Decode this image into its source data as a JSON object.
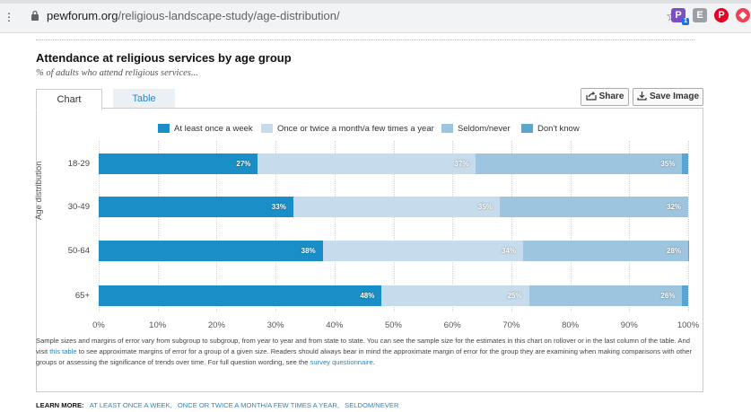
{
  "browser": {
    "menu_glyph": "⋮",
    "url_domain": "pewforum.org",
    "url_path": "/religious-landscape-study/age-distribution/",
    "star_glyph": "☆",
    "extensions": [
      {
        "name": "p-extension-icon",
        "text": "P",
        "color": "#7b4fbf"
      },
      {
        "name": "grey-extension-icon",
        "text": "E",
        "color": "#9aa0a6"
      },
      {
        "name": "pinterest-icon",
        "text": "P",
        "color": "#e60023"
      },
      {
        "name": "pocket-icon",
        "text": "◆",
        "color": "#ef4056"
      }
    ],
    "badge_text": "1"
  },
  "page": {
    "title": "Attendance at religious services by age group",
    "subtitle": "% of adults who attend religious services...",
    "tabs": {
      "chart": "Chart",
      "table": "Table"
    },
    "share_label": "Share",
    "save_label": "Save Image",
    "y_axis_label": "Age distribution",
    "note": {
      "part1": "Sample sizes and margins of error vary from subgroup to subgroup, from year to year and from state to state. You can see the sample size for the estimates in this chart on rollover or in the last column of the table. And visit ",
      "link1": "this table",
      "part2": " to see approximate margins of error for a group of a given size. Readers should always bear in mind the approximate margin of error for the group they are examining when making comparisons with other groups or assessing the significance of trends over time. For full question wording, see the ",
      "link2": "survey questionnaire",
      "part3": "."
    },
    "learn_more": {
      "label": "LEARN MORE:",
      "links": [
        "AT LEAST ONCE A WEEK,",
        "ONCE OR TWICE A MONTH/A FEW TIMES A YEAR,",
        "SELDOM/NEVER"
      ]
    }
  },
  "chart_data": {
    "type": "bar",
    "orientation": "horizontal",
    "stacked": true,
    "categories": [
      "18-29",
      "30-49",
      "50-64",
      "65+"
    ],
    "series": [
      {
        "name": "At least once a week",
        "color": "#1a8fc7",
        "values": [
          27,
          33,
          38,
          48
        ],
        "labels": [
          "27%",
          "33%",
          "38%",
          "48%"
        ]
      },
      {
        "name": "Once or twice a month/a few times a year",
        "color": "#c6dcec",
        "values": [
          37,
          35,
          34,
          25
        ],
        "labels": [
          "37%",
          "35%",
          "34%",
          "25%"
        ]
      },
      {
        "name": "Seldom/never",
        "color": "#9ec5e0",
        "values": [
          35,
          32,
          28,
          26
        ],
        "labels": [
          "35%",
          "32%",
          "28%",
          "26%"
        ]
      },
      {
        "name": "Don't know",
        "color": "#5aa6d2",
        "values": [
          1,
          0,
          1,
          1
        ],
        "labels": [
          "",
          "",
          "",
          ""
        ]
      }
    ],
    "xlim": [
      0,
      100
    ],
    "xticks": [
      "0%",
      "10%",
      "20%",
      "30%",
      "40%",
      "50%",
      "60%",
      "70%",
      "80%",
      "90%",
      "100%"
    ],
    "ylabel": "Age distribution",
    "grid": true,
    "legend_position": "top"
  }
}
